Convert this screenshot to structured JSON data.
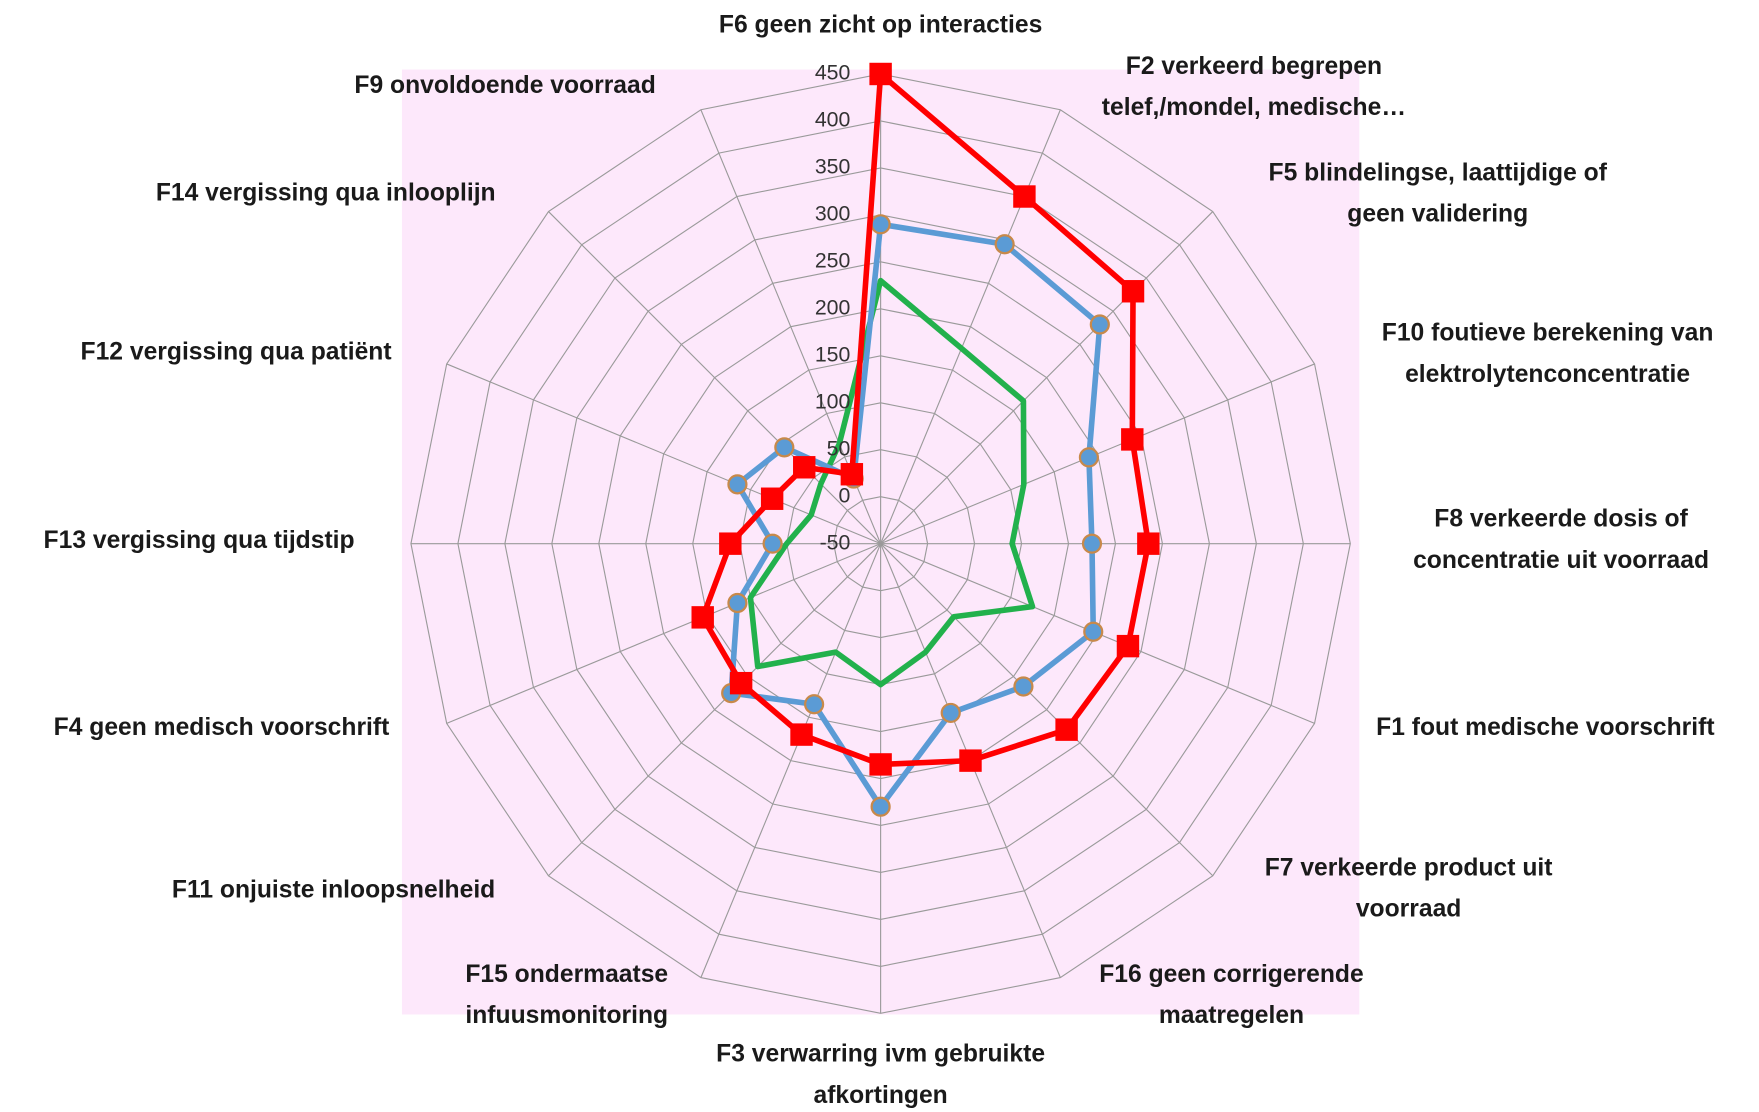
{
  "chart_data": {
    "type": "radar",
    "categories": [
      [
        "F6 geen zicht op interacties"
      ],
      [
        "F2  verkeerd begrepen",
        "telef,/mondel, medische…"
      ],
      [
        "F5 blindelingse, laattijdige of",
        "geen validering"
      ],
      [
        "F10  foutieve berekening van",
        "elektrolytenconcentratie"
      ],
      [
        "F8  verkeerde dosis of",
        "concentratie uit voorraad"
      ],
      [
        "F1 fout medische voorschrift"
      ],
      [
        "F7 verkeerde product uit",
        "voorraad"
      ],
      [
        "F16 geen corrigerende",
        "maatregelen"
      ],
      [
        "F3  verwarring ivm gebruikte",
        "afkortingen"
      ],
      [
        "F15 ondermaatse",
        "infuusmonitoring"
      ],
      [
        "F11 onjuiste inloopsnelheid"
      ],
      [
        "F4 geen medisch voorschrift"
      ],
      [
        "F13 vergissing qua tijdstip"
      ],
      [
        "F12 vergissing qua patiënt"
      ],
      [
        "F14 vergissing qua inlooplijn"
      ],
      [
        "F9 onvoldoende voorraad"
      ]
    ],
    "series": [
      {
        "color": "#22b14c",
        "marker": "none",
        "values": [
          230,
          175,
          165,
          115,
          90,
          125,
          60,
          75,
          100,
          75,
          135,
          100,
          50,
          30,
          40,
          65
        ]
      },
      {
        "color": "#5b9bd5",
        "marker": "circle",
        "values": [
          290,
          295,
          280,
          190,
          175,
          195,
          165,
          145,
          230,
          135,
          175,
          115,
          65,
          115,
          95,
          25
        ]
      },
      {
        "color": "#ff0000",
        "marker": "square",
        "values": [
          450,
          350,
          330,
          240,
          235,
          235,
          230,
          200,
          185,
          170,
          160,
          155,
          110,
          75,
          65,
          30
        ]
      }
    ],
    "ylim": [
      -50,
      450
    ],
    "yticks": [
      -50,
      0,
      50,
      100,
      150,
      200,
      250,
      300,
      350,
      400,
      450
    ],
    "grid": true,
    "background": "#fde8fb"
  }
}
